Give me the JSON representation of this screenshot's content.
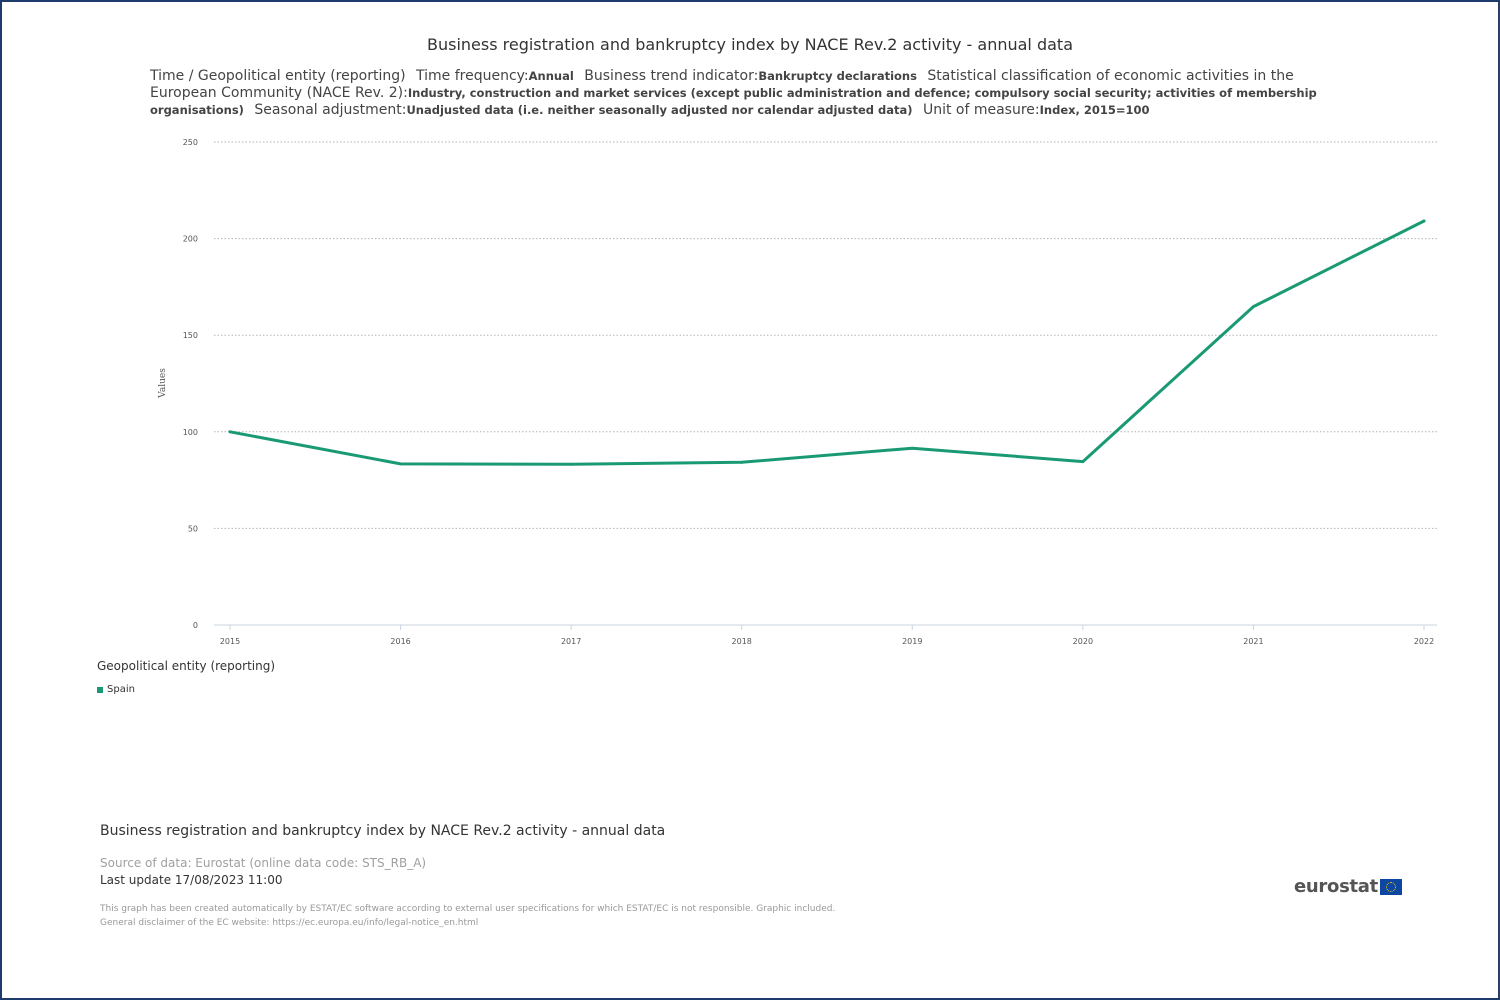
{
  "header": {
    "title": "Business registration and bankruptcy index by NACE Rev.2 activity - annual data",
    "dims_label": "Time / Geopolitical entity (reporting)",
    "freq_label": "Time frequency:",
    "freq_value": "Annual",
    "indicator_label": "Business trend indicator:",
    "indicator_value": "Bankruptcy declarations",
    "nace_label": "Statistical classification of economic activities in the European Community (NACE Rev. 2):",
    "nace_value": "Industry, construction and market services (except public administration and defence; compulsory social security; activities of membership organisations)",
    "seasonal_label": "Seasonal adjustment:",
    "seasonal_value": "Unadjusted data (i.e. neither seasonally adjusted nor calendar adjusted data)",
    "unit_label": "Unit of measure:",
    "unit_value": "Index, 2015=100"
  },
  "legend": {
    "title": "Geopolitical entity (reporting)",
    "items": [
      {
        "label": "Spain",
        "color": "#1a9a74"
      }
    ]
  },
  "footer": {
    "title": "Business registration and bankruptcy index by NACE Rev.2 activity - annual data",
    "source": "Source of data: Eurostat (online data code: STS_RB_A)",
    "updated": "Last update 17/08/2023 11:00",
    "disclaimer1": "This graph has been created automatically by ESTAT/EC software according to external user specifications for which ESTAT/EC is not responsible. Graphic included.",
    "disclaimer2": "General disclaimer of the EC website: https://ec.europa.eu/info/legal-notice_en.html",
    "logo_text": "eurostat"
  },
  "chart_data": {
    "type": "line",
    "title": "Business registration and bankruptcy index by NACE Rev.2 activity - annual data",
    "xlabel": "",
    "ylabel": "Values",
    "ylim": [
      0,
      250
    ],
    "yticks": [
      0,
      50,
      100,
      150,
      200,
      250
    ],
    "grid": true,
    "categories": [
      "2015",
      "2016",
      "2017",
      "2018",
      "2019",
      "2020",
      "2021",
      "2022"
    ],
    "series": [
      {
        "name": "Spain",
        "color": "#1a9a74",
        "values": [
          100.0,
          83.4,
          83.2,
          84.2,
          91.5,
          84.6,
          164.8,
          209.1
        ]
      }
    ]
  }
}
